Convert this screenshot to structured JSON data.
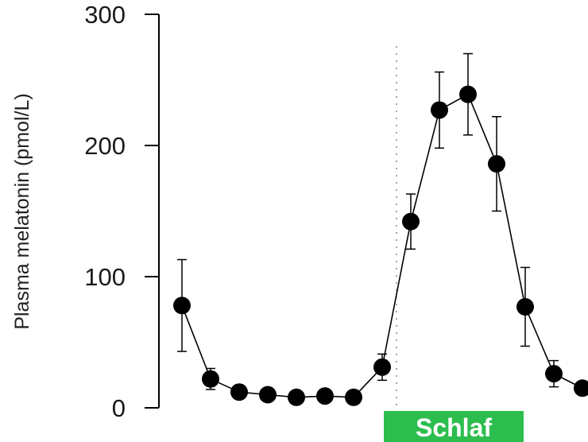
{
  "chart_data": {
    "type": "line",
    "title": "",
    "xlabel": "",
    "ylabel": "Plasma melatonin (pmol/L)",
    "ylim": [
      0,
      300
    ],
    "yticks": [
      0,
      100,
      200,
      300
    ],
    "grid": false,
    "series": [
      {
        "values": [
          78,
          22,
          12,
          10,
          8,
          9,
          8,
          31,
          142,
          227,
          239,
          186,
          77,
          26,
          15
        ],
        "error": [
          35,
          8,
          4,
          3,
          3,
          3,
          3,
          10,
          21,
          29,
          31,
          36,
          30,
          10,
          5
        ]
      }
    ],
    "annotations": {
      "sleep_label": "Schlaf",
      "sleep_start_index": 7.5,
      "sleep_end_index": 12
    },
    "colors": {
      "sleep_bar": "#2dbd4e",
      "marker": "#000000",
      "line": "#000000"
    }
  }
}
